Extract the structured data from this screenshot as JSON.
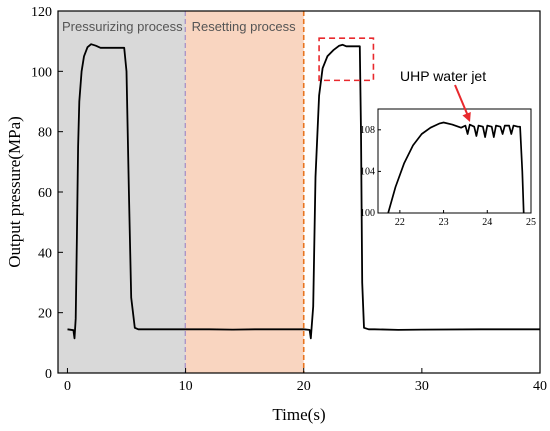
{
  "chart_data": {
    "type": "line",
    "xlabel": "Time(s)",
    "ylabel": "Output pressure(MPa)",
    "xlim": [
      -0.8,
      40
    ],
    "ylim": [
      0,
      120
    ],
    "xticks": [
      0,
      10,
      20,
      30,
      40
    ],
    "yticks": [
      0,
      20,
      40,
      60,
      80,
      100,
      120
    ],
    "grid": false,
    "regions": [
      {
        "label": "Pressurizing process",
        "x_start": -0.8,
        "x_end": 10,
        "color": "#d9d9d9",
        "boundary_color": "#7b68c8"
      },
      {
        "label": "Resetting process",
        "x_start": 10,
        "x_end": 20,
        "color": "#f9d5c0",
        "boundary_color": "#e8731e"
      }
    ],
    "series": [
      {
        "color": "#000000",
        "x": [
          0.0,
          0.5,
          0.6,
          0.7,
          0.8,
          0.9,
          1.0,
          1.2,
          1.4,
          1.7,
          2.0,
          2.4,
          2.8,
          3.2,
          3.5,
          3.7,
          4.0,
          4.5,
          4.8,
          5.0,
          5.2,
          5.4,
          5.7,
          6.0,
          8.0,
          10.0,
          12.0,
          14.0,
          16.0,
          18.0,
          20.0,
          20.5,
          20.6,
          20.8,
          21.0,
          21.3,
          21.6,
          22.0,
          22.5,
          23.0,
          23.3,
          23.6,
          24.0,
          24.5,
          24.75,
          24.85,
          24.95,
          25.1,
          25.5,
          26.0,
          28.0,
          30.0,
          35.0,
          40.0
        ],
        "y": [
          14.5,
          14.2,
          11.5,
          18,
          45,
          75,
          90,
          100,
          105,
          108,
          109,
          108.5,
          107.8,
          107.8,
          107.8,
          107.8,
          107.8,
          107.8,
          107.8,
          100,
          60,
          25,
          15,
          14.5,
          14.5,
          14.5,
          14.5,
          14.4,
          14.5,
          14.5,
          14.5,
          14.3,
          11.5,
          22,
          65,
          92,
          101,
          105,
          107,
          108.5,
          108.8,
          108.3,
          108.3,
          108.3,
          108.3,
          80,
          30,
          15,
          14.5,
          14.5,
          14.3,
          14.4,
          14.5,
          14.5
        ]
      }
    ],
    "highlight_box": {
      "x_range": [
        21.3,
        25.9
      ],
      "y_range": [
        97,
        111
      ],
      "color": "#e8292d"
    },
    "annotation": {
      "text": "UHP water jet",
      "color": "#e8292d"
    },
    "inset": {
      "xlim": [
        21.5,
        25
      ],
      "ylim": [
        100,
        110
      ],
      "xticks": [
        22,
        23,
        24,
        25
      ],
      "yticks": [
        100,
        104,
        108
      ],
      "x": [
        21.5,
        21.7,
        21.9,
        22.1,
        22.3,
        22.5,
        22.7,
        22.9,
        23.0,
        23.2,
        23.4,
        23.5,
        23.55,
        23.6,
        23.7,
        23.75,
        23.8,
        23.9,
        23.95,
        24.0,
        24.1,
        24.15,
        24.2,
        24.3,
        24.35,
        24.4,
        24.5,
        24.55,
        24.6,
        24.7,
        24.75,
        24.8,
        24.85
      ],
      "y": [
        96,
        99.5,
        102.5,
        104.8,
        106.5,
        107.6,
        108.2,
        108.6,
        108.7,
        108.5,
        108.2,
        108.4,
        107.6,
        108.5,
        108.3,
        107.4,
        108.4,
        108.3,
        107.3,
        108.4,
        108.3,
        107.3,
        108.4,
        108.3,
        107.6,
        108.4,
        108.4,
        107.6,
        108.4,
        108.3,
        108.3,
        104,
        98
      ]
    }
  }
}
